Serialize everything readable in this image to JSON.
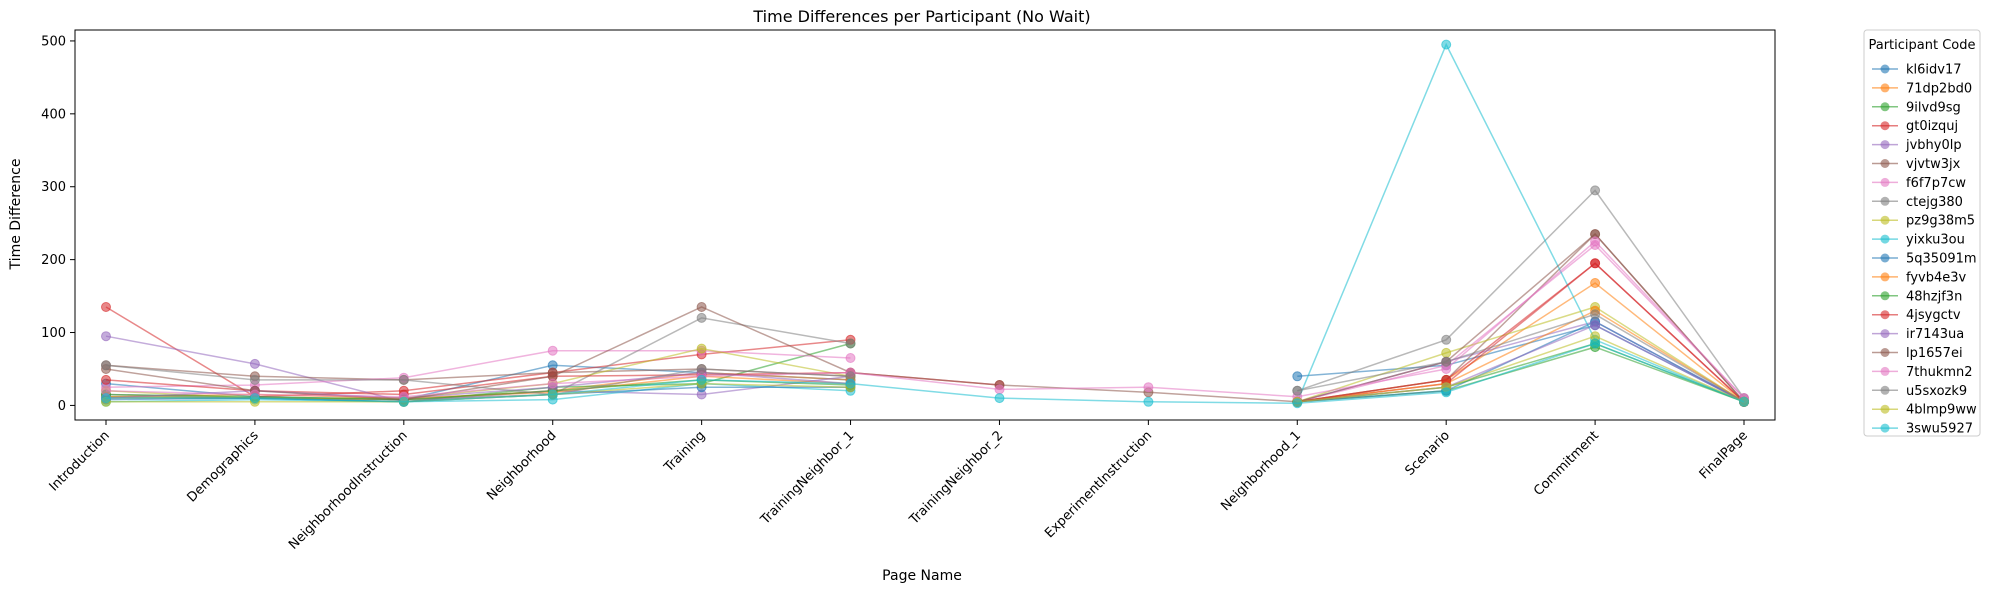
{
  "chart_data": {
    "type": "line",
    "title": "Time Differences per Participant (No Wait)",
    "xlabel": "Page Name",
    "ylabel": "Time Difference",
    "ylim": [
      -20,
      515
    ],
    "yticks": [
      0,
      100,
      200,
      300,
      400,
      500
    ],
    "grid": false,
    "legend_title": "Participant Code",
    "legend_placement": "outside-right",
    "categories": [
      "Introduction",
      "Demographics",
      "NeighborhoodInstruction",
      "Neighborhood",
      "Training",
      "TrainingNeighbor_1",
      "TrainingNeighbor_2",
      "ExperimentInstruction",
      "Neighborhood_1",
      "Scenario",
      "Commitment",
      "FinalPage"
    ],
    "series": [
      {
        "name": "kl6idv17",
        "color": "#1f77b4",
        "values": [
          30,
          12,
          8,
          55,
          45,
          35,
          null,
          null,
          40,
          55,
          110,
          5
        ]
      },
      {
        "name": "71dp2bd0",
        "color": "#ff7f0e",
        "values": [
          10,
          10,
          8,
          20,
          45,
          35,
          null,
          null,
          5,
          35,
          168,
          5
        ]
      },
      {
        "name": "9ilvd9sg",
        "color": "#2ca02c",
        "values": [
          12,
          10,
          5,
          25,
          30,
          85,
          null,
          null,
          5,
          20,
          80,
          5
        ]
      },
      {
        "name": "gt0izquj",
        "color": "#d62728",
        "values": [
          135,
          12,
          20,
          45,
          70,
          90,
          null,
          null,
          5,
          30,
          195,
          5
        ]
      },
      {
        "name": "jvbhy0lp",
        "color": "#9467bd",
        "values": [
          95,
          57,
          5,
          20,
          15,
          40,
          null,
          null,
          5,
          60,
          115,
          5
        ]
      },
      {
        "name": "vjvtw3jx",
        "color": "#8c564b",
        "values": [
          55,
          40,
          35,
          45,
          50,
          40,
          null,
          null,
          5,
          35,
          235,
          5
        ]
      },
      {
        "name": "f6f7p7cw",
        "color": "#e377c2",
        "values": [
          25,
          28,
          38,
          75,
          75,
          65,
          null,
          null,
          5,
          55,
          220,
          10
        ]
      },
      {
        "name": "ctejg380",
        "color": "#7f7f7f",
        "values": [
          15,
          10,
          8,
          15,
          120,
          85,
          null,
          null,
          20,
          90,
          295,
          10
        ]
      },
      {
        "name": "pz9g38m5",
        "color": "#bcbd22",
        "values": [
          20,
          10,
          10,
          30,
          78,
          40,
          null,
          null,
          5,
          72,
          135,
          5
        ]
      },
      {
        "name": "yixku3ou",
        "color": "#17becf",
        "values": [
          5,
          8,
          5,
          8,
          30,
          20,
          null,
          null,
          5,
          495,
          90,
          5
        ]
      },
      {
        "name": "5q35091m",
        "color": "#1f77b4",
        "values": [
          8,
          10,
          5,
          15,
          25,
          25,
          null,
          null,
          5,
          20,
          115,
          5
        ]
      },
      {
        "name": "fyvb4e3v",
        "color": "#ff7f0e",
        "values": [
          12,
          15,
          10,
          18,
          40,
          30,
          null,
          null,
          5,
          30,
          130,
          5
        ]
      },
      {
        "name": "48hzjf3n",
        "color": "#2ca02c",
        "values": [
          15,
          12,
          8,
          20,
          35,
          28,
          null,
          null,
          5,
          25,
          85,
          5
        ]
      },
      {
        "name": "4jsygctv",
        "color": "#d62728",
        "values": [
          35,
          20,
          15,
          40,
          42,
          45,
          28,
          null,
          5,
          35,
          195,
          5
        ]
      },
      {
        "name": "ir7143ua",
        "color": "#9467bd",
        "values": [
          10,
          20,
          10,
          25,
          45,
          30,
          null,
          null,
          5,
          25,
          110,
          5
        ]
      },
      {
        "name": "lp1657ei",
        "color": "#8c564b",
        "values": [
          50,
          20,
          8,
          40,
          135,
          45,
          28,
          18,
          5,
          60,
          235,
          5
        ]
      },
      {
        "name": "7thukmn2",
        "color": "#e377c2",
        "values": [
          20,
          15,
          12,
          30,
          40,
          45,
          22,
          25,
          12,
          50,
          225,
          10
        ]
      },
      {
        "name": "u5sxozk9",
        "color": "#7f7f7f",
        "values": [
          55,
          35,
          35,
          15,
          50,
          40,
          null,
          null,
          20,
          60,
          125,
          5
        ]
      },
      {
        "name": "4blmp9ww",
        "color": "#bcbd22",
        "values": [
          5,
          5,
          5,
          15,
          30,
          25,
          null,
          null,
          5,
          25,
          95,
          5
        ]
      },
      {
        "name": "3swu5927",
        "color": "#17becf",
        "values": [
          10,
          10,
          5,
          15,
          35,
          30,
          10,
          5,
          3,
          18,
          85,
          5
        ]
      }
    ]
  }
}
